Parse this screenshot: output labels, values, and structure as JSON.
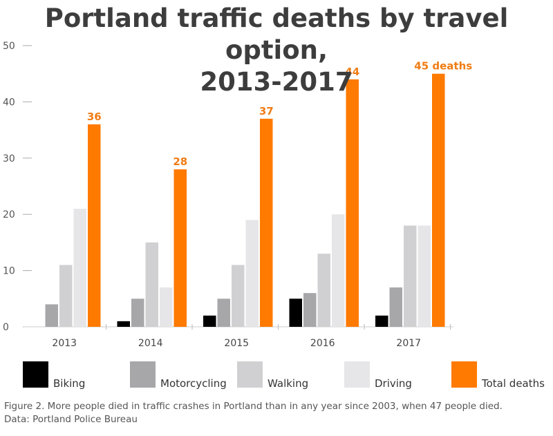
{
  "chart_data": {
    "type": "bar",
    "title": "Portland traffic deaths by travel option, 2013-2017",
    "title_lines": [
      "Portland traffic deaths by travel option,",
      "2013-2017"
    ],
    "categories": [
      "2013",
      "2014",
      "2015",
      "2016",
      "2017"
    ],
    "series": [
      {
        "name": "Biking",
        "color": "#000000",
        "values": [
          0,
          1,
          2,
          5,
          2
        ]
      },
      {
        "name": "Motorcycling",
        "color": "#a7a7aa",
        "values": [
          4,
          5,
          5,
          6,
          7
        ]
      },
      {
        "name": "Walking",
        "color": "#d0d0d2",
        "values": [
          11,
          15,
          11,
          13,
          18
        ]
      },
      {
        "name": "Driving",
        "color": "#e6e6e8",
        "values": [
          21,
          7,
          19,
          20,
          18
        ]
      },
      {
        "name": "Total deaths",
        "color": "#ff7a00",
        "values": [
          36,
          28,
          37,
          44,
          45
        ]
      }
    ],
    "data_labels": [
      "36",
      "28",
      "37",
      "44",
      "45 deaths"
    ],
    "y_ticks": [
      "0",
      "10",
      "20",
      "30",
      "40",
      "50"
    ],
    "ylim": [
      0,
      50
    ],
    "xlabel": "",
    "ylabel": "",
    "grid": false,
    "legend_position": "bottom"
  },
  "caption": {
    "line1": "Figure 2. More people died in traffic crashes in Portland than in any year since 2003, when 47 people died.",
    "line2": "Data: Portland Police Bureau"
  },
  "colors": {
    "accent": "#f07c14",
    "title": "#3d3d3d"
  }
}
